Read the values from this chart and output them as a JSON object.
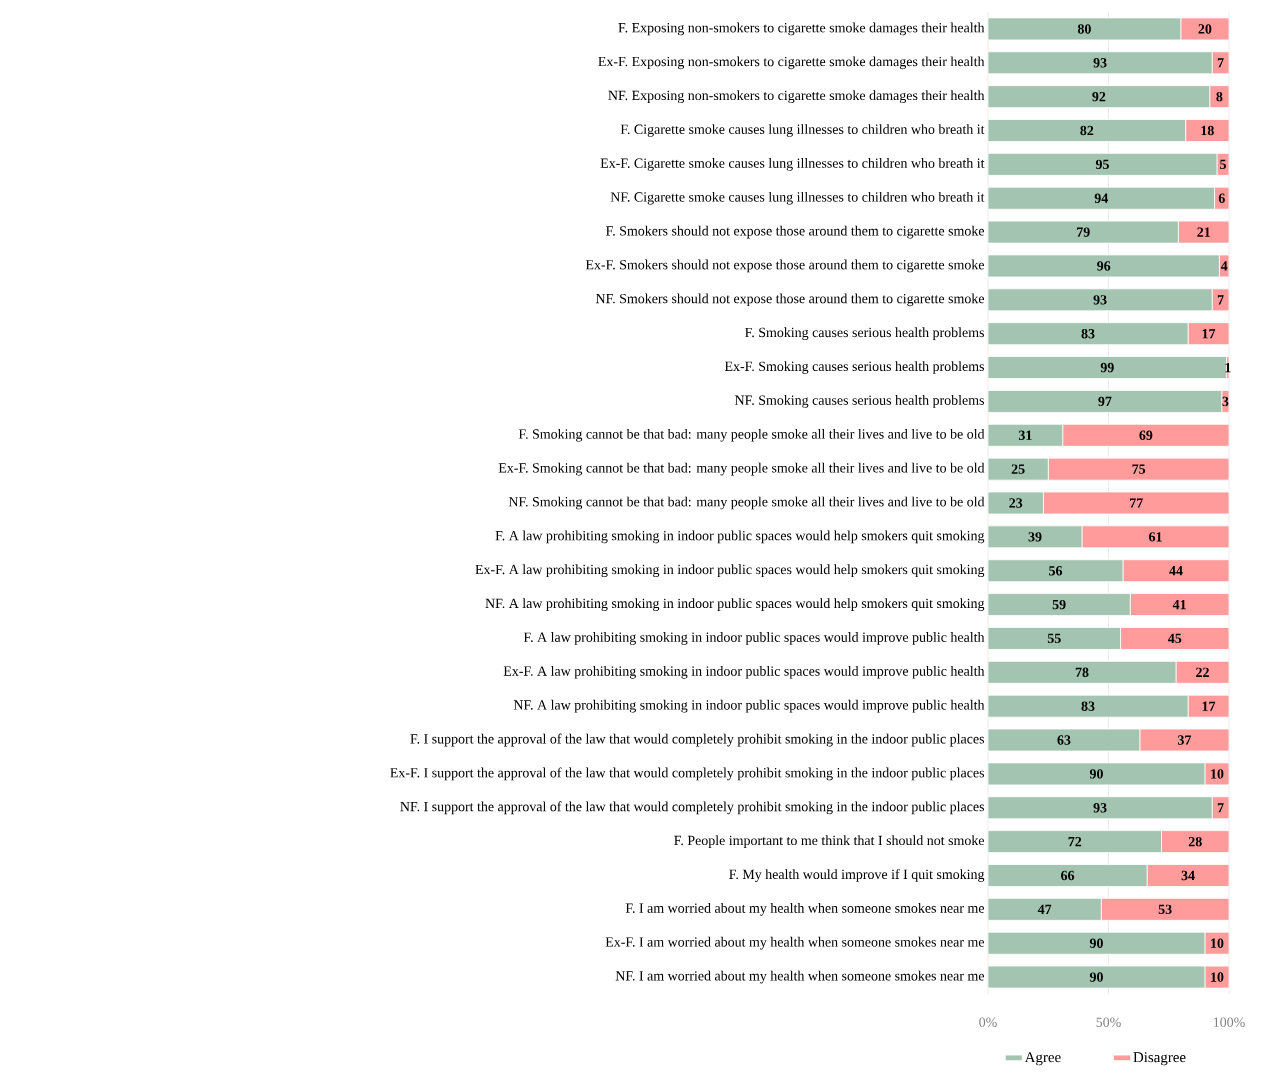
{
  "chart_data": {
    "type": "bar",
    "orientation": "horizontal",
    "stacked": true,
    "data_labels": true,
    "grid": "x",
    "legend": "bottom",
    "categories": [
      "F. Exposing non-smokers to cigarette smoke damages their health",
      "Ex-F. Exposing non-smokers to cigarette smoke damages their health",
      "NF. Exposing non-smokers to cigarette smoke damages their health",
      "F. Cigarette smoke causes lung illnesses to children who breath it",
      "Ex-F. Cigarette smoke causes lung illnesses to children who breath it",
      "NF. Cigarette smoke causes lung illnesses to children who breath it",
      "F. Smokers should not expose those around them to cigarette smoke",
      "Ex-F. Smokers should not expose those around them to cigarette smoke",
      "NF. Smokers should not expose those around them to cigarette smoke",
      "F. Smoking causes serious health problems",
      "Ex-F. Smoking causes serious health problems",
      "NF. Smoking causes serious health problems",
      "F. Smoking cannot be that bad: many people smoke all their lives and live to be old",
      "Ex-F. Smoking cannot be that bad: many people smoke all their lives and live to be old",
      "NF. Smoking cannot be that bad: many people smoke all their lives and live to be old",
      "F. A law prohibiting smoking in indoor public spaces would help smokers quit smoking",
      "Ex-F. A law prohibiting smoking in indoor public spaces would help smokers quit smoking",
      "NF. A law prohibiting smoking in indoor public spaces would help smokers quit smoking",
      "F. A law prohibiting smoking in indoor public spaces would improve public health",
      "Ex-F. A law prohibiting smoking in indoor public spaces would improve public health",
      "NF. A law prohibiting smoking in indoor public spaces would improve public health",
      "F. I support the approval of the law that would completely prohibit smoking in the indoor public places",
      "Ex-F. I support the approval of the law that would completely prohibit smoking in the indoor public places",
      "NF. I support the approval of the law that would completely prohibit smoking in the indoor public places",
      "F. People important to me think that I should not smoke",
      "F. My health would improve if I quit smoking",
      "F. I am worried about my health when someone smokes near me",
      "Ex-F. I am worried about my health when someone smokes near me",
      "NF. I am worried about my health when someone smokes near me"
    ],
    "series": [
      {
        "name": "Agree",
        "color": "#a3c4b0",
        "values": [
          80,
          93,
          92,
          82,
          95,
          94,
          79,
          96,
          93,
          83,
          99,
          97,
          31,
          25,
          23,
          39,
          56,
          59,
          55,
          78,
          83,
          63,
          90,
          93,
          72,
          66,
          47,
          90,
          90
        ]
      },
      {
        "name": "Disagree",
        "color": "#ff9b9b",
        "values": [
          20,
          7,
          8,
          18,
          5,
          6,
          21,
          4,
          7,
          17,
          1,
          3,
          69,
          75,
          77,
          61,
          44,
          41,
          45,
          22,
          17,
          37,
          10,
          7,
          28,
          34,
          53,
          10,
          10
        ]
      }
    ],
    "xlim": [
      0,
      100
    ],
    "xticks": [
      {
        "value": 0,
        "label": "0%"
      },
      {
        "value": 50,
        "label": "50%"
      },
      {
        "value": 100,
        "label": "100%"
      }
    ]
  }
}
